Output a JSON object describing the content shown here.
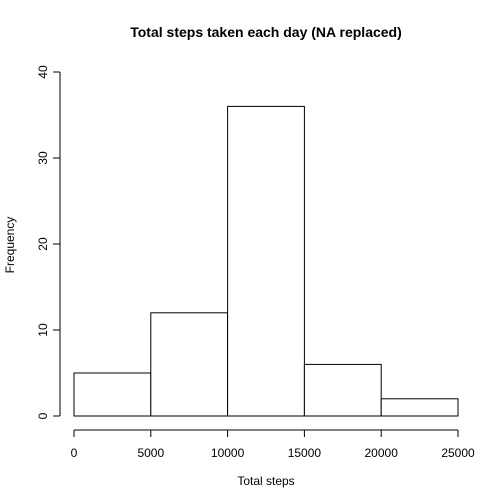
{
  "chart_data": {
    "type": "bar",
    "title": "Total steps taken each day (NA replaced)",
    "xlabel": "Total steps",
    "ylabel": "Frequency",
    "bins": [
      {
        "from": 0,
        "to": 5000,
        "count": 5
      },
      {
        "from": 5000,
        "to": 10000,
        "count": 12
      },
      {
        "from": 10000,
        "to": 15000,
        "count": 36
      },
      {
        "from": 15000,
        "to": 20000,
        "count": 6
      },
      {
        "from": 20000,
        "to": 25000,
        "count": 2
      }
    ],
    "xlim": [
      0,
      25000
    ],
    "ylim": [
      0,
      40
    ],
    "x_ticks": [
      "0",
      "5000",
      "10000",
      "15000",
      "20000",
      "25000"
    ],
    "y_ticks": [
      "0",
      "10",
      "20",
      "30",
      "40"
    ],
    "grid": false,
    "bar_fill": "#ffffff",
    "bar_stroke": "#000000"
  }
}
